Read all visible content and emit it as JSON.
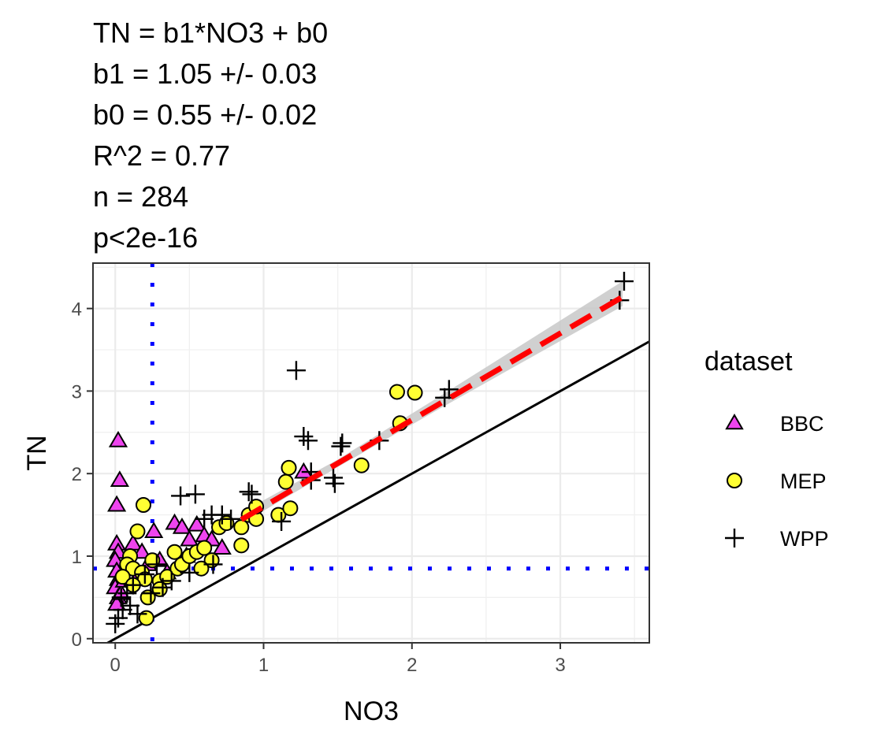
{
  "annotation_lines": [
    "TN = b1*NO3 + b0",
    "b1 = 1.05 +/- 0.03",
    "b0 = 0.55 +/- 0.02",
    "R^2 = 0.77",
    "n = 284",
    "p<2e-16"
  ],
  "chart_data": {
    "type": "scatter",
    "xlabel": "NO3",
    "ylabel": "TN",
    "xlim": [
      -0.15,
      3.6
    ],
    "ylim": [
      -0.05,
      4.55
    ],
    "x_ticks": [
      0,
      1,
      2,
      3
    ],
    "y_ticks": [
      0,
      1,
      2,
      3,
      4
    ],
    "x_tick_labels": [
      "0",
      "1",
      "2",
      "3"
    ],
    "y_tick_labels": [
      "0",
      "1",
      "2",
      "3",
      "4"
    ],
    "grid": true,
    "legend": {
      "title": "dataset",
      "position": "right"
    },
    "colors": {
      "BBC": "#ee44ee",
      "MEP": "#ffff33",
      "fit": "#ff0000",
      "ref": "#0000ff",
      "band": "#c8c8c8"
    },
    "fit_line": {
      "slope": 1.05,
      "intercept": 0.55,
      "x_range": [
        0.85,
        3.42
      ],
      "style": "dashed"
    },
    "fit_band": {
      "x": [
        0.85,
        1.5,
        2.2,
        3.42
      ],
      "lower": [
        1.39,
        2.08,
        2.8,
        4.03
      ],
      "upper": [
        1.53,
        2.17,
        2.95,
        4.33
      ]
    },
    "identity_line": {
      "slope": 1,
      "intercept": 0
    },
    "ref_lines": {
      "vline_x": 0.25,
      "hline_y": 0.85
    },
    "series": [
      {
        "name": "BBC",
        "marker": "triangle",
        "points": [
          [
            0.02,
            2.4
          ],
          [
            0.03,
            1.92
          ],
          [
            0.01,
            1.62
          ],
          [
            0.01,
            1.15
          ],
          [
            0.02,
            1.05
          ],
          [
            0.0,
            0.95
          ],
          [
            0.01,
            0.82
          ],
          [
            0.02,
            0.72
          ],
          [
            0.0,
            0.62
          ],
          [
            0.02,
            0.5
          ],
          [
            0.01,
            0.42
          ],
          [
            0.04,
            0.55
          ],
          [
            0.06,
            0.7
          ],
          [
            0.08,
            0.85
          ],
          [
            0.12,
            1.15
          ],
          [
            0.18,
            1.05
          ],
          [
            0.26,
            1.3
          ],
          [
            0.3,
            0.95
          ],
          [
            0.4,
            1.4
          ],
          [
            0.45,
            1.35
          ],
          [
            0.5,
            1.2
          ],
          [
            0.55,
            1.38
          ],
          [
            0.6,
            1.25
          ],
          [
            0.65,
            1.2
          ],
          [
            0.72,
            1.1
          ],
          [
            0.35,
            0.8
          ],
          [
            0.48,
            1.0
          ],
          [
            1.27,
            2.02
          ],
          [
            0.15,
            0.75
          ],
          [
            0.22,
            0.9
          ]
        ]
      },
      {
        "name": "MEP",
        "marker": "circle",
        "points": [
          [
            0.19,
            1.62
          ],
          [
            0.15,
            1.3
          ],
          [
            0.1,
            1.0
          ],
          [
            0.08,
            0.9
          ],
          [
            0.12,
            0.85
          ],
          [
            0.18,
            0.8
          ],
          [
            0.2,
            0.72
          ],
          [
            0.22,
            0.5
          ],
          [
            0.21,
            0.25
          ],
          [
            0.3,
            0.7
          ],
          [
            0.35,
            0.75
          ],
          [
            0.42,
            0.85
          ],
          [
            0.45,
            0.9
          ],
          [
            0.5,
            1.0
          ],
          [
            0.55,
            1.05
          ],
          [
            0.6,
            1.1
          ],
          [
            0.65,
            0.95
          ],
          [
            0.7,
            1.35
          ],
          [
            0.75,
            1.4
          ],
          [
            0.85,
            1.13
          ],
          [
            0.85,
            1.35
          ],
          [
            0.9,
            1.5
          ],
          [
            0.95,
            1.45
          ],
          [
            0.95,
            1.6
          ],
          [
            1.1,
            1.5
          ],
          [
            1.15,
            1.9
          ],
          [
            1.17,
            2.07
          ],
          [
            1.18,
            1.58
          ],
          [
            1.66,
            2.1
          ],
          [
            1.9,
            2.99
          ],
          [
            1.92,
            2.61
          ],
          [
            2.02,
            2.98
          ],
          [
            0.05,
            0.75
          ],
          [
            0.25,
            0.95
          ],
          [
            0.4,
            1.05
          ],
          [
            0.58,
            0.85
          ],
          [
            0.3,
            0.6
          ],
          [
            0.12,
            0.65
          ]
        ]
      },
      {
        "name": "WPP",
        "marker": "plus",
        "points": [
          [
            0.0,
            0.18
          ],
          [
            0.02,
            0.25
          ],
          [
            0.05,
            0.35
          ],
          [
            0.04,
            0.5
          ],
          [
            0.08,
            0.55
          ],
          [
            0.12,
            0.65
          ],
          [
            0.2,
            0.78
          ],
          [
            0.28,
            0.9
          ],
          [
            0.32,
            0.62
          ],
          [
            0.38,
            0.7
          ],
          [
            0.44,
            1.73
          ],
          [
            0.54,
            1.75
          ],
          [
            0.6,
            1.45
          ],
          [
            0.65,
            1.5
          ],
          [
            0.72,
            1.5
          ],
          [
            0.78,
            1.45
          ],
          [
            0.9,
            1.78
          ],
          [
            0.92,
            1.75
          ],
          [
            1.12,
            1.42
          ],
          [
            1.22,
            3.25
          ],
          [
            1.27,
            2.45
          ],
          [
            1.3,
            2.4
          ],
          [
            1.32,
            2.02
          ],
          [
            1.32,
            1.92
          ],
          [
            1.47,
            1.95
          ],
          [
            1.48,
            1.88
          ],
          [
            1.52,
            2.33
          ],
          [
            1.53,
            2.37
          ],
          [
            1.78,
            2.4
          ],
          [
            2.22,
            2.92
          ],
          [
            2.25,
            3.02
          ],
          [
            3.4,
            4.1
          ],
          [
            3.43,
            4.33
          ],
          [
            0.5,
            0.8
          ],
          [
            0.66,
            0.9
          ],
          [
            0.24,
            0.55
          ],
          [
            0.1,
            0.4
          ],
          [
            0.15,
            0.3
          ]
        ]
      }
    ]
  }
}
